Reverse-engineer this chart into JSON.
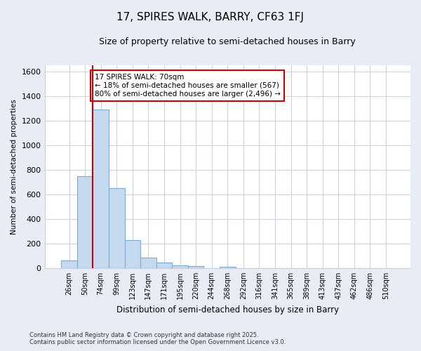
{
  "title": "17, SPIRES WALK, BARRY, CF63 1FJ",
  "subtitle": "Size of property relative to semi-detached houses in Barry",
  "xlabel": "Distribution of semi-detached houses by size in Barry",
  "ylabel": "Number of semi-detached properties",
  "categories": [
    "26sqm",
    "50sqm",
    "74sqm",
    "99sqm",
    "123sqm",
    "147sqm",
    "171sqm",
    "195sqm",
    "220sqm",
    "244sqm",
    "268sqm",
    "292sqm",
    "316sqm",
    "341sqm",
    "365sqm",
    "389sqm",
    "413sqm",
    "437sqm",
    "462sqm",
    "486sqm",
    "510sqm"
  ],
  "values": [
    65,
    750,
    1290,
    650,
    230,
    85,
    45,
    25,
    15,
    0,
    10,
    0,
    0,
    0,
    0,
    0,
    0,
    0,
    0,
    0,
    0
  ],
  "bar_color": "#c5d9f0",
  "bar_edge_color": "#7aadd4",
  "grid_color": "#c8cfe0",
  "bg_color": "#e8edf5",
  "plot_bg_color": "#ffffff",
  "vline_color": "#cc0000",
  "vline_x_index": 1.5,
  "annotation_text": "17 SPIRES WALK: 70sqm\n← 18% of semi-detached houses are smaller (567)\n80% of semi-detached houses are larger (2,496) →",
  "annotation_box_color": "#cc0000",
  "footer": "Contains HM Land Registry data © Crown copyright and database right 2025.\nContains public sector information licensed under the Open Government Licence v3.0.",
  "ylim": [
    0,
    1650
  ],
  "yticks": [
    0,
    200,
    400,
    600,
    800,
    1000,
    1200,
    1400,
    1600
  ]
}
